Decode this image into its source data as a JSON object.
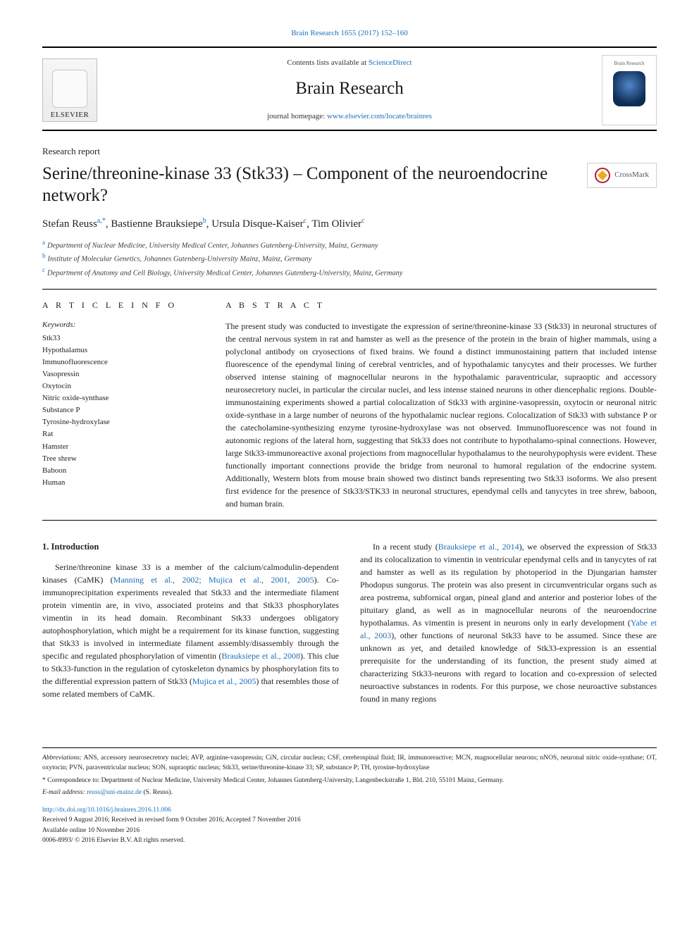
{
  "colors": {
    "link": "#1a6fb8",
    "text": "#222222",
    "rule": "#000000",
    "muted": "#555555"
  },
  "header": {
    "top_citation": "Brain Research 1655 (2017) 152–160",
    "contents_prefix": "Contents lists available at ",
    "contents_link": "ScienceDirect",
    "journal_title": "Brain Research",
    "homepage_prefix": "journal homepage: ",
    "homepage_url": "www.elsevier.com/locate/brainres",
    "publisher_wordmark": "ELSEVIER",
    "cover_caption": "Brain Research"
  },
  "article": {
    "type": "Research report",
    "title": "Serine/threonine-kinase 33 (Stk33) – Component of the neuroendocrine network?",
    "crossmark_label": "CrossMark"
  },
  "authors": {
    "line_parts": [
      {
        "name": "Stefan Reuss",
        "sup": "a,*"
      },
      {
        "name": "Bastienne Brauksiepe",
        "sup": "b"
      },
      {
        "name": "Ursula Disque-Kaiser",
        "sup": "c"
      },
      {
        "name": "Tim Olivier",
        "sup": "c"
      }
    ]
  },
  "affiliations": [
    {
      "sup": "a",
      "text": "Department of Nuclear Medicine, University Medical Center, Johannes Gutenberg-University, Mainz, Germany"
    },
    {
      "sup": "b",
      "text": "Institute of Molecular Genetics, Johannes Gutenberg-University Mainz, Mainz, Germany"
    },
    {
      "sup": "c",
      "text": "Department of Anatomy and Cell Biology, University Medical Center, Johannes Gutenberg-University, Mainz, Germany"
    }
  ],
  "info_heading": "A R T I C L E  I N F O",
  "abstract_heading": "A B S T R A C T",
  "keywords_label": "Keywords:",
  "keywords": [
    "Stk33",
    "Hypothalamus",
    "Immunofluorescence",
    "Vasopressin",
    "Oxytocin",
    "Nitric oxide-synthase",
    "Substance P",
    "Tyrosine-hydroxylase",
    "Rat",
    "Hamster",
    "Tree shrew",
    "Baboon",
    "Human"
  ],
  "abstract": "The present study was conducted to investigate the expression of serine/threonine-kinase 33 (Stk33) in neuronal structures of the central nervous system in rat and hamster as well as the presence of the protein in the brain of higher mammals, using a polyclonal antibody on cryosections of fixed brains. We found a distinct immunostaining pattern that included intense fluorescence of the ependymal lining of cerebral ventricles, and of hypothalamic tanycytes and their processes. We further observed intense staining of magnocellular neurons in the hypothalamic paraventricular, supraoptic and accessory neurosecretory nuclei, in particular the circular nuclei, and less intense stained neurons in other diencephalic regions. Double-immunostaining experiments showed a partial colocalization of Stk33 with arginine-vasopressin, oxytocin or neuronal nitric oxide-synthase in a large number of neurons of the hypothalamic nuclear regions. Colocalization of Stk33 with substance P or the catecholamine-synthesizing enzyme tyrosine-hydroxylase was not observed. Immunofluorescence was not found in autonomic regions of the lateral horn, suggesting that Stk33 does not contribute to hypothalamo-spinal connections. However, large Stk33-immunoreactive axonal projections from magnocellular hypothalamus to the neurohypophysis were evident. These functionally important connections provide the bridge from neuronal to humoral regulation of the endocrine system. Additionally, Western blots from mouse brain showed two distinct bands representing two Stk33 isoforms. We also present first evidence for the presence of Stk33/STK33 in neuronal structures, ependymal cells and tanycytes in tree shrew, baboon, and human brain.",
  "section1": {
    "number_title": "1. Introduction",
    "col_left_p1_a": "Serine/threonine kinase 33 is a member of the calcium/calmodulin-dependent kinases (CaMK) (",
    "col_left_p1_ref1": "Manning et al., 2002; Mujica et al., 2001, 2005",
    "col_left_p1_b": "). Co-immunoprecipitation experiments revealed that Stk33 and the intermediate filament protein vimentin are, in vivo, associated proteins and that Stk33 phosphorylates vimentin in its head domain. Recombinant Stk33 undergoes obligatory autophosphorylation, which might be a requirement for its kinase function, suggesting that Stk33 is involved in intermediate filament assembly/disassembly through the specific and regulated phosphorylation of vimentin (",
    "col_left_p1_ref2": "Brauksiepe et al., 2008",
    "col_left_p1_c": "). This clue to Stk33-function in the regulation of cytoskeleton dynamics by phosphorylation fits to the differential expression pattern of Stk33 (",
    "col_left_p1_ref3": "Mujica et al., 2005",
    "col_left_p1_d": ") that resembles those of some related members of CaMK.",
    "col_right_p1_a": "In a recent study (",
    "col_right_p1_ref1": "Brauksiepe et al., 2014",
    "col_right_p1_b": "), we observed the expression of Stk33 and its colocalization to vimentin in ventricular ependymal cells and in tanycytes of rat and hamster as well as its regulation by photoperiod in the Djungarian hamster Phodopus sungorus. The protein was also present in circumventricular organs such as area postrema, subfornical organ, pineal gland and anterior and posterior lobes of the pituitary gland, as well as in magnocellular neurons of the neuroendocrine hypothalamus. As vimentin is present in neurons only in early development (",
    "col_right_p1_ref2": "Yabe et al., 2003",
    "col_right_p1_c": "), other functions of neuronal Stk33 have to be assumed. Since these are unknown as yet, and detailed knowledge of Stk33-expression is an essential prerequisite for the understanding of its function, the present study aimed at characterizing Stk33-neurons with regard to location and co-expression of selected neuroactive substances in rodents. For this purpose, we chose neuroactive substances found in many regions"
  },
  "footnotes": {
    "abbrev_label": "Abbreviations:",
    "abbrev_text": " ANS, accessory neurosecretory nuclei; AVP, arginine-vasopressin; CiN, circular nucleus; CSF, cerebrospinal fluid; IR, immunoreactive; MCN, magnocellular neurons; nNOS, neuronal nitric oxide-synthase; OT, oxytocin; PVN, paraventricular nucleus; SON, supraoptic nucleus; Stk33, serine/threonine-kinase 33; SP, substance P; TH, tyrosine-hydroxylase",
    "corr_marker": "*",
    "corr_text": " Correspondence to: Department of Nuclear Medicine, University Medical Center, Johannes Gutenberg-University, Langenbeckstraße 1, Bld. 210, 55101 Mainz, Germany.",
    "email_label": "E-mail address:",
    "email_value": "reuss@uni-mainz.de",
    "email_person": " (S. Reuss)."
  },
  "tail": {
    "doi": "http://dx.doi.org/10.1016/j.brainres.2016.11.006",
    "history": "Received 9 August 2016; Received in revised form 9 October 2016; Accepted 7 November 2016",
    "available": "Available online 10 November 2016",
    "copyright": "0006-8993/ © 2016 Elsevier B.V. All rights reserved."
  }
}
